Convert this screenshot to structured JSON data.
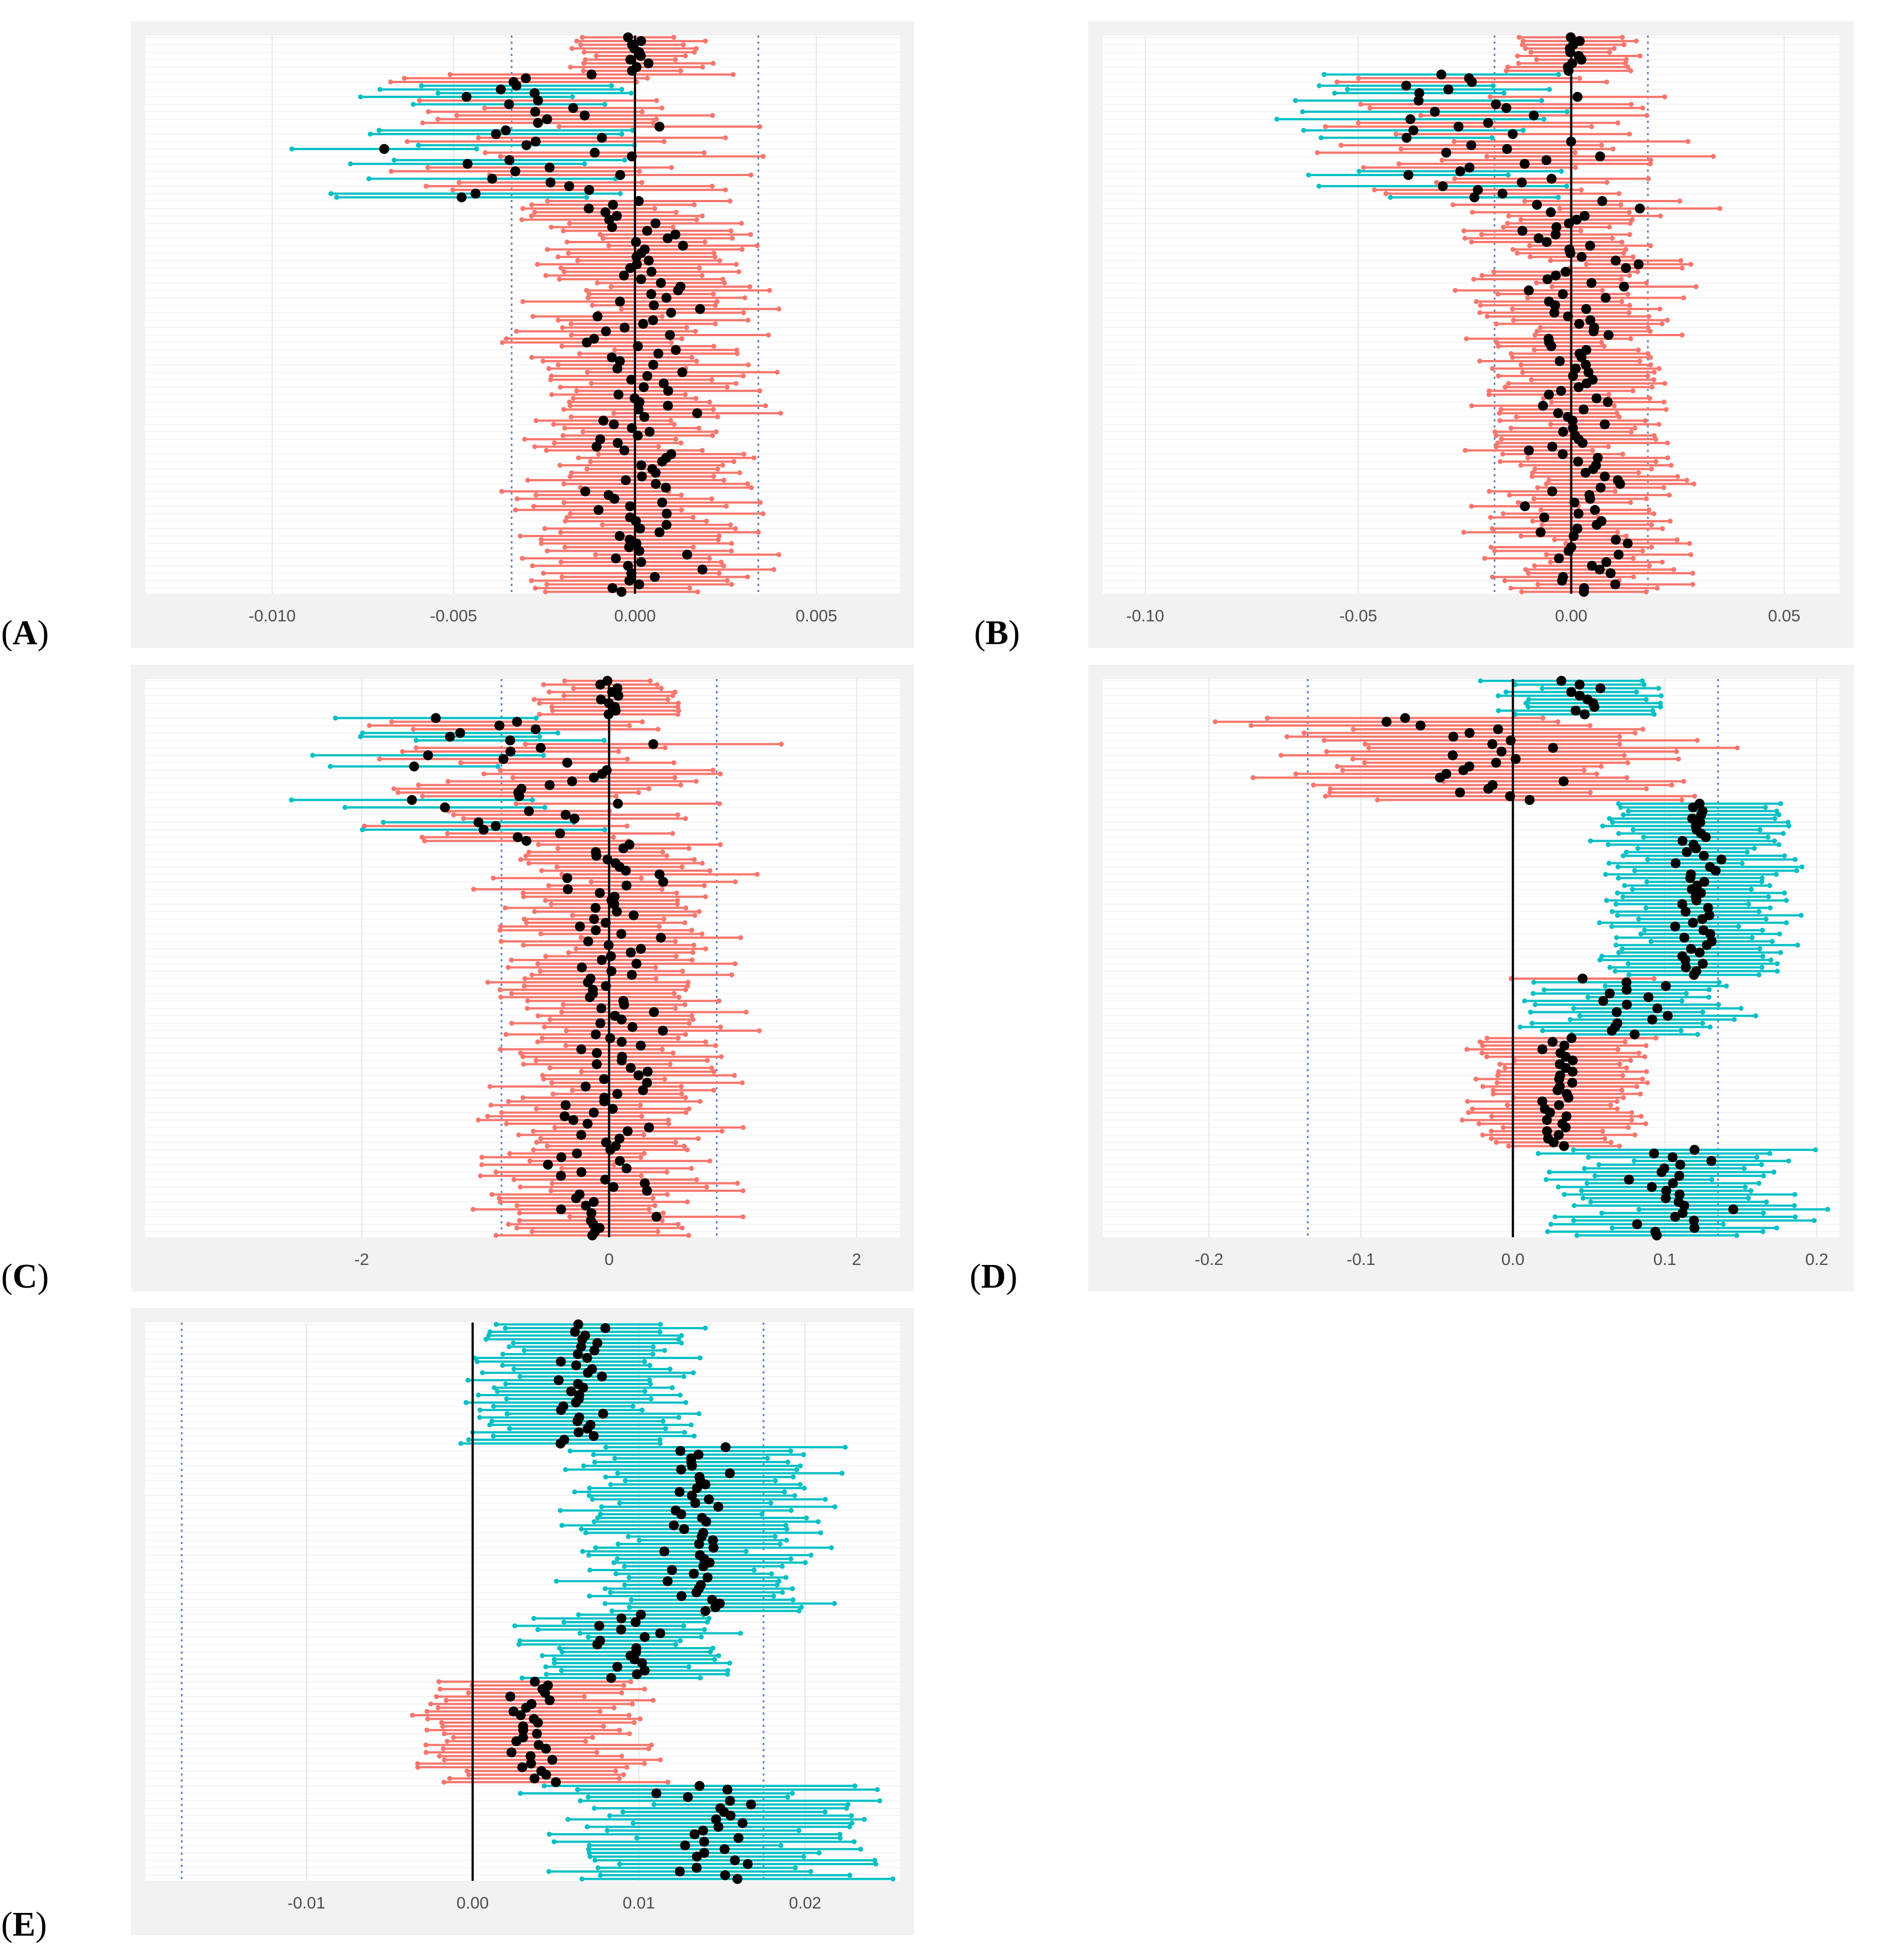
{
  "colors": {
    "outer_bg": "#f2f2f2",
    "plot_bg": "#ffffff",
    "grid": "#ebebeb",
    "salmon": "#f8766d",
    "teal": "#00bfc4",
    "point": "#000000",
    "zero_line": "#000000",
    "dotted_line": "#5b7ec6",
    "tick_text": "#4d4d4d"
  },
  "chart_data": [
    {
      "panel": "A",
      "type": "forest",
      "xlim": [
        -0.0135,
        0.0073
      ],
      "ticks": [
        -0.01,
        -0.005,
        0.0,
        0.005
      ],
      "tick_labels": [
        "-0.010",
        "-0.005",
        "0.000",
        "0.005"
      ],
      "threshold": 0.0034,
      "n_rows": 150,
      "seed": 11,
      "segments": [
        {
          "count": 10,
          "center": 0.0001,
          "spread": 0.0004,
          "half_width": 0.0016,
          "color": "salmon"
        },
        {
          "count": 34,
          "center": -0.0025,
          "spread": 0.0028,
          "half_width": 0.0032,
          "color": "mixed"
        },
        {
          "count": 106,
          "center": 0.0,
          "spread": 0.0012,
          "half_width": 0.0022,
          "color": "salmon"
        }
      ]
    },
    {
      "panel": "B",
      "type": "forest",
      "xlim": [
        -0.11,
        0.063
      ],
      "ticks": [
        -0.1,
        -0.05,
        0.0,
        0.05
      ],
      "tick_labels": [
        "-0.10",
        "-0.05",
        "0.00",
        "0.05"
      ],
      "threshold": 0.018,
      "n_rows": 150,
      "seed": 23,
      "segments": [
        {
          "count": 10,
          "center": 0.001,
          "spread": 0.003,
          "half_width": 0.012,
          "color": "salmon"
        },
        {
          "count": 34,
          "center": -0.02,
          "spread": 0.022,
          "half_width": 0.026,
          "color": "mixed"
        },
        {
          "count": 106,
          "center": 0.002,
          "spread": 0.01,
          "half_width": 0.016,
          "color": "salmon"
        }
      ]
    },
    {
      "panel": "C",
      "type": "forest",
      "xlim": [
        -3.75,
        2.35
      ],
      "ticks": [
        -2,
        0,
        2
      ],
      "tick_labels": [
        "-2",
        "0",
        "2"
      ],
      "threshold": 0.87,
      "n_rows": 150,
      "seed": 37,
      "segments": [
        {
          "count": 10,
          "center": 0.05,
          "spread": 0.12,
          "half_width": 0.45,
          "color": "salmon"
        },
        {
          "count": 34,
          "center": -0.6,
          "spread": 0.8,
          "half_width": 0.85,
          "color": "mixed"
        },
        {
          "count": 106,
          "center": 0.0,
          "spread": 0.35,
          "half_width": 0.65,
          "color": "salmon"
        }
      ]
    },
    {
      "panel": "D",
      "type": "forest",
      "xlim": [
        -0.27,
        0.215
      ],
      "ticks": [
        -0.2,
        -0.1,
        0.0,
        0.1,
        0.2
      ],
      "tick_labels": [
        "-0.2",
        "-0.1",
        "0.0",
        "0.1",
        "0.2"
      ],
      "threshold": 0.135,
      "n_rows": 150,
      "seed": 53,
      "segments": [
        {
          "count": 10,
          "center": 0.05,
          "spread": 0.015,
          "half_width": 0.05,
          "color": "teal"
        },
        {
          "count": 23,
          "center": -0.01,
          "spread": 0.055,
          "half_width": 0.1,
          "color": "salmon"
        },
        {
          "count": 47,
          "center": 0.12,
          "spread": 0.012,
          "half_width": 0.05,
          "color": "teal"
        },
        {
          "count": 16,
          "center": 0.08,
          "spread": 0.025,
          "half_width": 0.05,
          "color": "mixed_teal"
        },
        {
          "count": 30,
          "center": 0.03,
          "spread": 0.012,
          "half_width": 0.045,
          "color": "salmon"
        },
        {
          "count": 24,
          "center": 0.11,
          "spread": 0.025,
          "half_width": 0.065,
          "color": "teal"
        }
      ]
    },
    {
      "panel": "E",
      "type": "forest",
      "xlim": [
        -0.0197,
        0.0257
      ],
      "ticks": [
        -0.01,
        0.0,
        0.01,
        0.02
      ],
      "tick_labels": [
        "-0.01",
        "0.00",
        "0.01",
        "0.02"
      ],
      "threshold": 0.0175,
      "n_rows": 150,
      "seed": 71,
      "segments": [
        {
          "count": 33,
          "center": 0.0065,
          "spread": 0.0015,
          "half_width": 0.0055,
          "color": "teal"
        },
        {
          "count": 45,
          "center": 0.0135,
          "spread": 0.0015,
          "half_width": 0.0058,
          "color": "teal"
        },
        {
          "count": 18,
          "center": 0.0095,
          "spread": 0.0018,
          "half_width": 0.0045,
          "color": "teal"
        },
        {
          "count": 28,
          "center": 0.0035,
          "spread": 0.0012,
          "half_width": 0.0055,
          "color": "salmon"
        },
        {
          "count": 26,
          "center": 0.0145,
          "spread": 0.0025,
          "half_width": 0.0075,
          "color": "teal"
        }
      ]
    }
  ],
  "labels": {
    "A": "A",
    "B": "B",
    "C": "C",
    "D": "D",
    "E": "E"
  }
}
